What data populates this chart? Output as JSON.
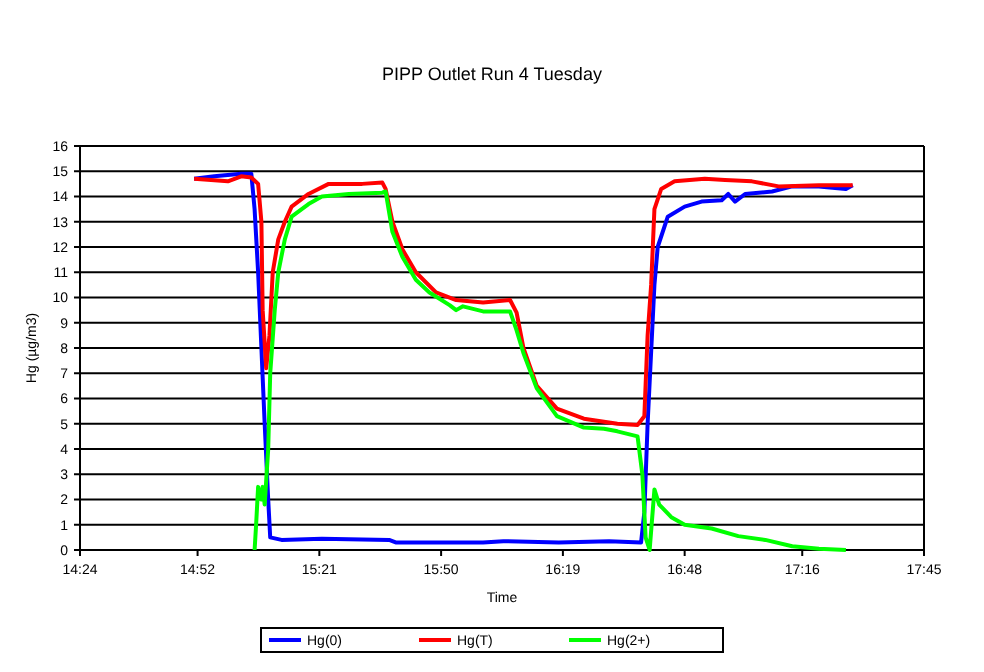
{
  "chart_data": {
    "type": "line",
    "title": "PIPP Outlet Run 4 Tuesday",
    "xlabel": "Time",
    "ylabel": "Hg (µg/m3)",
    "xlim": [
      14.4,
      17.75
    ],
    "xticks": [
      {
        "value": 14.4,
        "label": "14:24"
      },
      {
        "value": 14.8667,
        "label": "14:52"
      },
      {
        "value": 15.35,
        "label": "15:21"
      },
      {
        "value": 15.8333,
        "label": "15:50"
      },
      {
        "value": 16.3167,
        "label": "16:19"
      },
      {
        "value": 16.8,
        "label": "16:48"
      },
      {
        "value": 17.2667,
        "label": "17:16"
      },
      {
        "value": 17.75,
        "label": "17:45"
      }
    ],
    "ylim": [
      0,
      16
    ],
    "yticks": [
      0,
      1,
      2,
      3,
      4,
      5,
      6,
      7,
      8,
      9,
      10,
      11,
      12,
      13,
      14,
      15,
      16
    ],
    "grid": "y",
    "legend": "bottom",
    "line_style": "solid",
    "series": [
      {
        "name": "Hg(0)",
        "color": "#0000ff",
        "x": [
          14.853,
          14.933,
          15.04,
          15.08,
          15.093,
          15.107,
          15.12,
          15.133,
          15.147,
          15.155,
          15.2,
          15.36,
          15.627,
          15.653,
          15.893,
          16.0,
          16.08,
          16.3,
          16.5,
          16.627,
          16.64,
          16.653,
          16.68,
          16.693,
          16.733,
          16.8,
          16.867,
          16.947,
          16.973,
          17.0,
          17.04,
          17.147,
          17.227,
          17.333,
          17.44,
          17.467
        ],
        "values": [
          14.7,
          14.8,
          14.9,
          14.9,
          13.5,
          11,
          8,
          5,
          2,
          0.5,
          0.4,
          0.45,
          0.4,
          0.3,
          0.3,
          0.3,
          0.35,
          0.3,
          0.35,
          0.3,
          1.5,
          5,
          10.5,
          12,
          13.2,
          13.6,
          13.8,
          13.85,
          14.1,
          13.8,
          14.1,
          14.2,
          14.4,
          14.4,
          14.3,
          14.45
        ]
      },
      {
        "name": "Hg(T)",
        "color": "#ff0000",
        "x": [
          14.853,
          14.987,
          15.04,
          15.08,
          15.107,
          15.12,
          15.125,
          15.139,
          15.152,
          15.165,
          15.187,
          15.213,
          15.24,
          15.307,
          15.387,
          15.52,
          15.6,
          15.613,
          15.64,
          15.68,
          15.733,
          15.813,
          15.893,
          16.0,
          16.107,
          16.133,
          16.16,
          16.213,
          16.293,
          16.4,
          16.533,
          16.613,
          16.64,
          16.653,
          16.667,
          16.68,
          16.707,
          16.76,
          16.88,
          16.96,
          17.067,
          17.173,
          17.333,
          17.467
        ],
        "values": [
          14.7,
          14.6,
          14.8,
          14.75,
          14.5,
          13,
          9.5,
          7.2,
          8.5,
          11,
          12.3,
          13,
          13.6,
          14.1,
          14.5,
          14.5,
          14.55,
          14.3,
          13,
          11.9,
          11,
          10.2,
          9.9,
          9.8,
          9.9,
          9.4,
          8,
          6.5,
          5.6,
          5.2,
          5,
          4.95,
          5.3,
          8.5,
          10.5,
          13.5,
          14.3,
          14.6,
          14.7,
          14.65,
          14.6,
          14.4,
          14.45,
          14.45
        ]
      },
      {
        "name": "Hg(2+)",
        "color": "#00ff00",
        "x": [
          15.093,
          15.099,
          15.107,
          15.12,
          15.125,
          15.133,
          15.147,
          15.155,
          15.173,
          15.187,
          15.213,
          15.24,
          15.307,
          15.36,
          15.467,
          15.6,
          15.613,
          15.64,
          15.68,
          15.733,
          15.787,
          15.867,
          15.893,
          15.92,
          16.0,
          16.107,
          16.133,
          16.16,
          16.213,
          16.293,
          16.4,
          16.48,
          16.533,
          16.613,
          16.632,
          16.645,
          16.661,
          16.68,
          16.699,
          16.747,
          16.8,
          16.907,
          17.013,
          17.12,
          17.227,
          17.333,
          17.44
        ],
        "values": [
          0,
          1,
          2.5,
          2,
          2.5,
          1.8,
          4,
          7,
          9.5,
          11,
          12.3,
          13.2,
          13.7,
          14,
          14.1,
          14.15,
          14.2,
          12.6,
          11.6,
          10.7,
          10.2,
          9.7,
          9.5,
          9.65,
          9.45,
          9.45,
          8.7,
          7.8,
          6.4,
          5.3,
          4.85,
          4.8,
          4.7,
          4.5,
          3,
          0.5,
          0,
          2.4,
          1.8,
          1.3,
          1,
          0.85,
          0.55,
          0.4,
          0.15,
          0.05,
          0
        ]
      }
    ]
  }
}
